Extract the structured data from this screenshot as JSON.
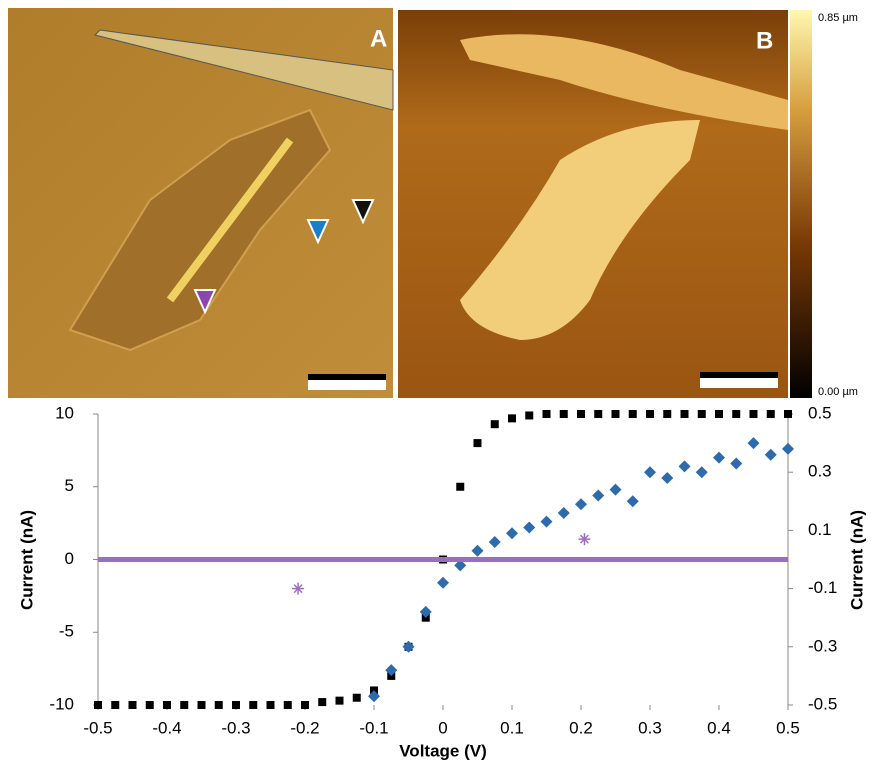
{
  "panels": {
    "a_label": "A",
    "b_label": "B",
    "colorbar_max": "0.85 µm",
    "colorbar_min": "0.00 µm"
  },
  "chart_data": {
    "type": "scatter",
    "xlabel": "Voltage (V)",
    "ylabel": "Current (nA)",
    "y2label": "Current (nA)",
    "xlim": [
      -0.5,
      0.5
    ],
    "xticks": [
      -0.5,
      -0.4,
      -0.3,
      -0.2,
      -0.1,
      0,
      0.1,
      0.2,
      0.3,
      0.4,
      0.5
    ],
    "ylim": [
      -10,
      10
    ],
    "yticks": [
      -10,
      -5,
      0,
      5,
      10
    ],
    "y2lim": [
      -0.5,
      0.5
    ],
    "y2ticks": [
      -0.5,
      -0.3,
      -0.1,
      0.1,
      0.3,
      0.5
    ],
    "series": [
      {
        "color": "#000000",
        "marker": "square",
        "x": [
          -0.5,
          -0.475,
          -0.45,
          -0.425,
          -0.4,
          -0.375,
          -0.35,
          -0.325,
          -0.3,
          -0.275,
          -0.25,
          -0.225,
          -0.2,
          -0.175,
          -0.15,
          -0.125,
          -0.1,
          -0.075,
          -0.05,
          -0.025,
          0,
          0.025,
          0.05,
          0.075,
          0.1,
          0.125,
          0.15,
          0.175,
          0.2,
          0.225,
          0.25,
          0.275,
          0.3,
          0.325,
          0.35,
          0.375,
          0.4,
          0.425,
          0.45,
          0.475,
          0.5
        ],
        "values": [
          -10,
          -10,
          -10,
          -10,
          -10,
          -10,
          -10,
          -10,
          -10,
          -10,
          -10,
          -10,
          -10,
          -9.8,
          -9.7,
          -9.5,
          -9,
          -8,
          -6,
          -4,
          0,
          5,
          8,
          9.3,
          9.7,
          9.9,
          10,
          10,
          10,
          10,
          10,
          10,
          10,
          10,
          10,
          10,
          10,
          10,
          10,
          10,
          10
        ]
      },
      {
        "color": "#2e6bad",
        "marker": "diamond",
        "axis": "y2",
        "x": [
          -0.1,
          -0.075,
          -0.05,
          -0.025,
          0,
          0.025,
          0.05,
          0.075,
          0.1,
          0.125,
          0.15,
          0.175,
          0.2,
          0.225,
          0.25,
          0.275,
          0.3,
          0.325,
          0.35,
          0.375,
          0.4,
          0.425,
          0.45,
          0.475,
          0.5
        ],
        "values": [
          -0.47,
          -0.38,
          -0.3,
          -0.18,
          -0.08,
          -0.02,
          0.03,
          0.06,
          0.09,
          0.11,
          0.13,
          0.16,
          0.19,
          0.22,
          0.24,
          0.2,
          0.3,
          0.28,
          0.32,
          0.3,
          0.35,
          0.33,
          0.4,
          0.36,
          0.38
        ]
      },
      {
        "color": "#9b6fc0",
        "marker": "line",
        "x": [
          -0.5,
          -0.45,
          -0.4,
          -0.35,
          -0.3,
          -0.25,
          -0.2,
          -0.15,
          -0.1,
          -0.05,
          0,
          0.05,
          0.1,
          0.15,
          0.2,
          0.25,
          0.3,
          0.35,
          0.4,
          0.45,
          0.5
        ],
        "values": [
          0,
          0,
          0,
          0,
          0,
          0,
          0,
          0,
          0,
          0,
          0,
          0,
          0,
          0,
          0,
          0,
          0,
          0,
          0,
          0,
          0
        ]
      },
      {
        "color": "#9b6fc0",
        "marker": "asterisk",
        "x": [
          -0.21,
          0.205
        ],
        "values": [
          -2,
          1.4
        ]
      }
    ]
  }
}
